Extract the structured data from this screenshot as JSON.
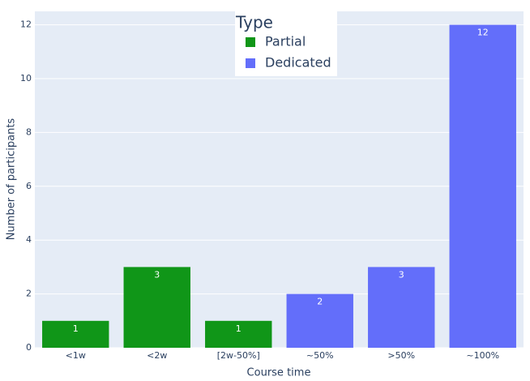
{
  "chart_data": {
    "type": "bar",
    "categories": [
      "<1w",
      "<2w",
      "[2w-50%]",
      "~50%",
      ">50%",
      "~100%"
    ],
    "series": [
      {
        "name": "Partial",
        "color": "#109618",
        "values": [
          1,
          3,
          1,
          null,
          null,
          null
        ]
      },
      {
        "name": "Dedicated",
        "color": "#636efa",
        "values": [
          null,
          null,
          null,
          2,
          3,
          12
        ]
      }
    ],
    "legend_title": "Type",
    "x_label": "Course time",
    "y_label": "Number of participants",
    "ylim": [
      0,
      12.5
    ],
    "yticks": [
      0,
      2,
      4,
      6,
      8,
      10,
      12
    ],
    "grid": true
  }
}
